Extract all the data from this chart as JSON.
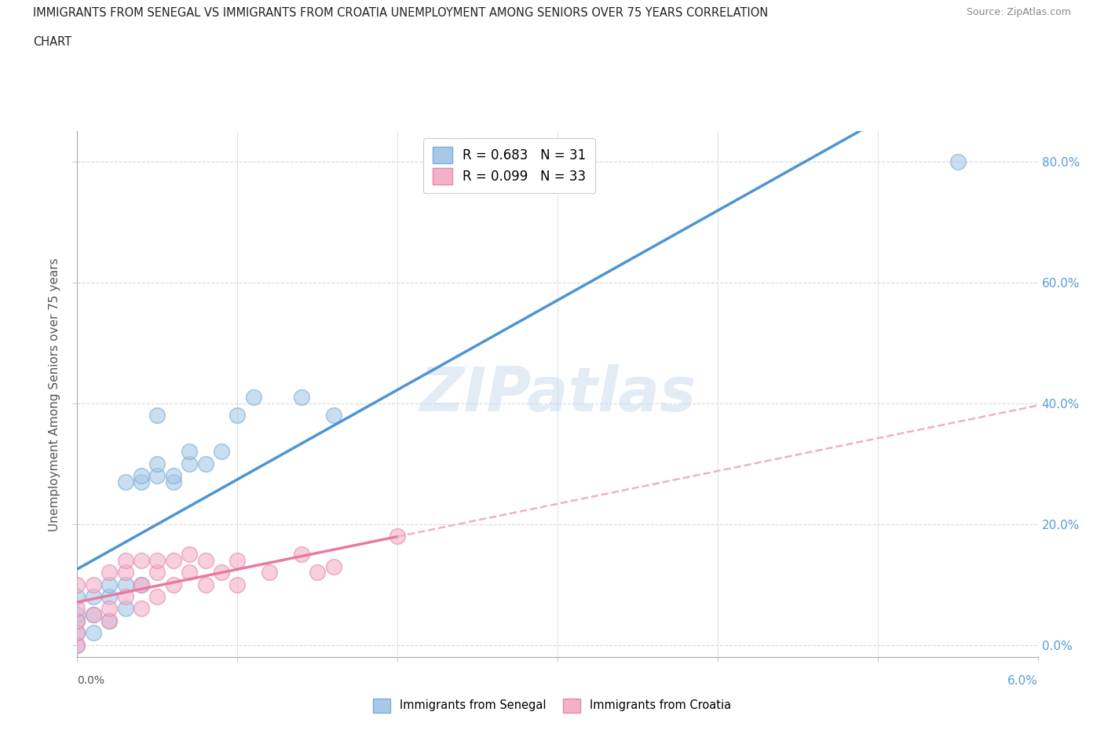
{
  "title_line1": "IMMIGRANTS FROM SENEGAL VS IMMIGRANTS FROM CROATIA UNEMPLOYMENT AMONG SENIORS OVER 75 YEARS CORRELATION",
  "title_line2": "CHART",
  "source": "Source: ZipAtlas.com",
  "ylabel": "Unemployment Among Seniors over 75 years",
  "senegal_r": 0.683,
  "senegal_n": 31,
  "croatia_r": 0.099,
  "croatia_n": 33,
  "senegal_color": "#a8c8e8",
  "croatia_color": "#f4b0c8",
  "senegal_edge_color": "#7aafd4",
  "croatia_edge_color": "#e888aa",
  "senegal_line_color": "#4d94d4",
  "croatia_line_color": "#e87aa0",
  "croatia_dash_color": "#f0b0c8",
  "watermark": "ZIPatlas",
  "right_tick_color": "#5b9bd5",
  "senegal_x": [
    0.0,
    0.0,
    0.0,
    0.0,
    0.0,
    0.001,
    0.001,
    0.001,
    0.002,
    0.002,
    0.002,
    0.003,
    0.003,
    0.003,
    0.004,
    0.004,
    0.004,
    0.005,
    0.005,
    0.005,
    0.006,
    0.006,
    0.007,
    0.007,
    0.008,
    0.009,
    0.01,
    0.011,
    0.014,
    0.016,
    0.055
  ],
  "senegal_y": [
    0.0,
    0.02,
    0.04,
    0.05,
    0.08,
    0.02,
    0.05,
    0.08,
    0.04,
    0.08,
    0.1,
    0.06,
    0.1,
    0.27,
    0.1,
    0.27,
    0.28,
    0.28,
    0.3,
    0.38,
    0.27,
    0.28,
    0.3,
    0.32,
    0.3,
    0.32,
    0.38,
    0.41,
    0.41,
    0.38,
    0.8
  ],
  "croatia_x": [
    0.0,
    0.0,
    0.0,
    0.0,
    0.0,
    0.001,
    0.001,
    0.002,
    0.002,
    0.002,
    0.003,
    0.003,
    0.003,
    0.004,
    0.004,
    0.004,
    0.005,
    0.005,
    0.005,
    0.006,
    0.006,
    0.007,
    0.007,
    0.008,
    0.008,
    0.009,
    0.01,
    0.01,
    0.012,
    0.014,
    0.015,
    0.016,
    0.02
  ],
  "croatia_y": [
    0.0,
    0.02,
    0.04,
    0.06,
    0.1,
    0.05,
    0.1,
    0.04,
    0.06,
    0.12,
    0.08,
    0.12,
    0.14,
    0.06,
    0.1,
    0.14,
    0.08,
    0.12,
    0.14,
    0.1,
    0.14,
    0.12,
    0.15,
    0.1,
    0.14,
    0.12,
    0.1,
    0.14,
    0.12,
    0.15,
    0.12,
    0.13,
    0.18
  ],
  "xmin": 0.0,
  "xmax": 0.06,
  "ymin": -0.02,
  "ymax": 0.85,
  "y_ticks": [
    0.0,
    0.2,
    0.4,
    0.6,
    0.8
  ],
  "background_color": "#ffffff",
  "grid_color": "#d8d8d8"
}
